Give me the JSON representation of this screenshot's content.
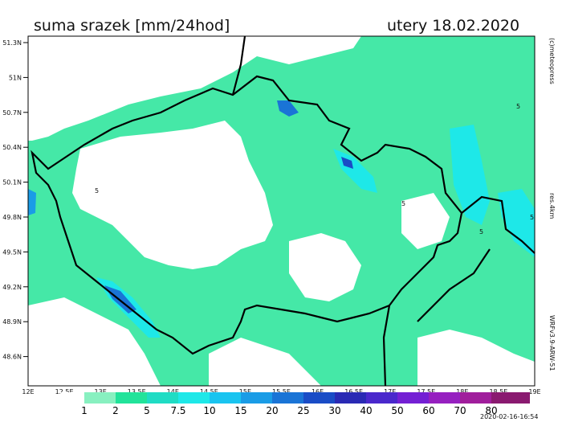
{
  "header": {
    "title": "suma srazek [mm/24hod]",
    "date": "utery 18.02.2020"
  },
  "lat_labels": [
    "51.3N",
    "51N",
    "50.7N",
    "50.4N",
    "50.1N",
    "49.8N",
    "49.5N",
    "49.2N",
    "48.9N",
    "48.6N"
  ],
  "lon_labels": [
    "12E",
    "12.5E",
    "13E",
    "13.5E",
    "14E",
    "14.5E",
    "15E",
    "15.5E",
    "16E",
    "16.5E",
    "17E",
    "17.5E",
    "18E",
    "18.5E",
    "19E"
  ],
  "legend": {
    "labels": [
      "1",
      "2",
      "5",
      "7.5",
      "10",
      "15",
      "20",
      "25",
      "30",
      "40",
      "50",
      "60",
      "70",
      "80"
    ],
    "colors": [
      "#ffffff",
      "#88f0c0",
      "#22e39a",
      "#1fdcc4",
      "#1ee8e8",
      "#19c4f0",
      "#1a9ce6",
      "#1a74d6",
      "#1a4cc6",
      "#2a2ab4",
      "#4a28cc",
      "#7420d4",
      "#9620c0",
      "#a01e9c",
      "#8a1a70"
    ]
  },
  "contour_label": "5",
  "side": {
    "credit": "(c)meteopress",
    "resolution": "res.4km",
    "model": "WRFv3.9-ARW-51"
  },
  "timestamp": "2020-02-16-16:54"
}
